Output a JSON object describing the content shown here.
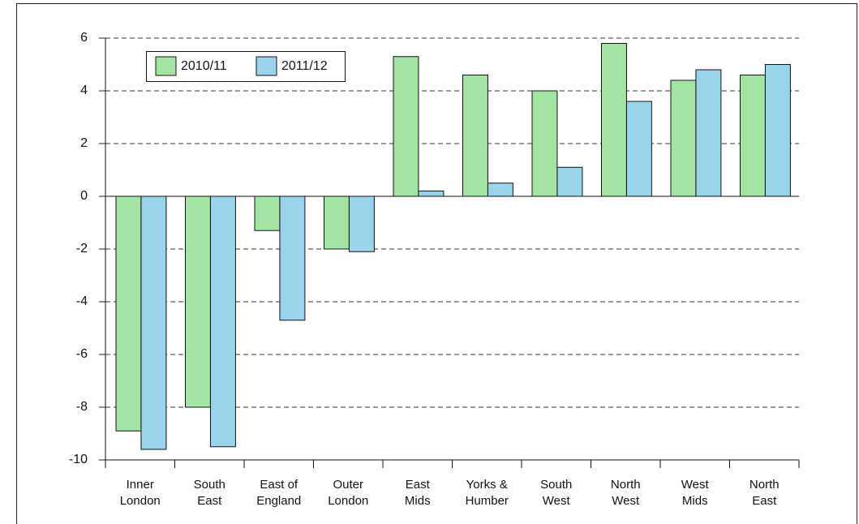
{
  "chart_data": {
    "type": "bar",
    "categories": [
      "Inner London",
      "South East",
      "East of England",
      "Outer London",
      "East Mids",
      "Yorks & Humber",
      "South West",
      "North West",
      "West Mids",
      "North East"
    ],
    "series": [
      {
        "name": "2010/11",
        "color": "#a3e4a3",
        "values": [
          -8.9,
          -8.0,
          -1.3,
          -2.0,
          5.3,
          4.6,
          4.0,
          5.8,
          4.4,
          4.6
        ]
      },
      {
        "name": "2011/12",
        "color": "#99d3ec",
        "values": [
          -9.6,
          -9.5,
          -4.7,
          -2.1,
          0.2,
          0.5,
          1.1,
          3.6,
          4.8,
          5.0
        ]
      }
    ],
    "ylim": [
      -10,
      6
    ],
    "yticks": [
      -10,
      -8,
      -6,
      -4,
      -2,
      0,
      2,
      4,
      6
    ],
    "grid": true,
    "legend": "top-left"
  }
}
